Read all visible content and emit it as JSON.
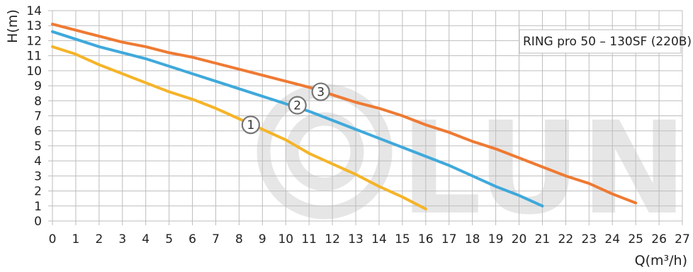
{
  "chart_data": {
    "type": "line",
    "title": "",
    "xlabel": "Q(m³/h)",
    "ylabel": "H(m)",
    "xlim": [
      0,
      27
    ],
    "ylim": [
      0,
      14
    ],
    "x_ticks": [
      0,
      1,
      2,
      3,
      4,
      5,
      6,
      7,
      8,
      9,
      10,
      11,
      12,
      13,
      14,
      15,
      16,
      17,
      18,
      19,
      20,
      21,
      22,
      23,
      24,
      25,
      26,
      27
    ],
    "y_ticks": [
      0,
      1,
      2,
      3,
      4,
      5,
      6,
      7,
      8,
      9,
      10,
      11,
      12,
      13,
      14
    ],
    "grid": true,
    "legend_box": "RING pro 50 – 130SF (220В)",
    "watermark": "LUNDA",
    "series": [
      {
        "name": "1",
        "color": "#F5B428",
        "points": [
          [
            0,
            11.6
          ],
          [
            1,
            11.1
          ],
          [
            2,
            10.4
          ],
          [
            3,
            9.8
          ],
          [
            4,
            9.2
          ],
          [
            5,
            8.6
          ],
          [
            6,
            8.1
          ],
          [
            7,
            7.5
          ],
          [
            8,
            6.8
          ],
          [
            9,
            6.1
          ],
          [
            10,
            5.4
          ],
          [
            11,
            4.5
          ],
          [
            12,
            3.8
          ],
          [
            13,
            3.1
          ],
          [
            14,
            2.3
          ],
          [
            15,
            1.6
          ],
          [
            16,
            0.8
          ]
        ],
        "marker": {
          "label": "1",
          "x": 8.5,
          "y": 6.4
        }
      },
      {
        "name": "2",
        "color": "#3FA9DB",
        "points": [
          [
            0,
            12.6
          ],
          [
            1,
            12.1
          ],
          [
            2,
            11.6
          ],
          [
            3,
            11.2
          ],
          [
            4,
            10.8
          ],
          [
            5,
            10.3
          ],
          [
            6,
            9.8
          ],
          [
            7,
            9.3
          ],
          [
            8,
            8.8
          ],
          [
            9,
            8.3
          ],
          [
            10,
            7.8
          ],
          [
            11,
            7.3
          ],
          [
            12,
            6.7
          ],
          [
            13,
            6.1
          ],
          [
            14,
            5.5
          ],
          [
            15,
            4.9
          ],
          [
            16,
            4.3
          ],
          [
            17,
            3.7
          ],
          [
            18,
            3.0
          ],
          [
            19,
            2.3
          ],
          [
            20,
            1.7
          ],
          [
            21,
            1.0
          ]
        ],
        "marker": {
          "label": "2",
          "x": 10.5,
          "y": 7.7
        }
      },
      {
        "name": "3",
        "color": "#EE7A33",
        "points": [
          [
            0,
            13.1
          ],
          [
            1,
            12.7
          ],
          [
            2,
            12.3
          ],
          [
            3,
            11.9
          ],
          [
            4,
            11.6
          ],
          [
            5,
            11.2
          ],
          [
            6,
            10.9
          ],
          [
            7,
            10.5
          ],
          [
            8,
            10.1
          ],
          [
            9,
            9.7
          ],
          [
            10,
            9.3
          ],
          [
            11,
            8.9
          ],
          [
            12,
            8.4
          ],
          [
            13,
            7.9
          ],
          [
            14,
            7.5
          ],
          [
            15,
            7.0
          ],
          [
            16,
            6.4
          ],
          [
            17,
            5.9
          ],
          [
            18,
            5.3
          ],
          [
            19,
            4.8
          ],
          [
            20,
            4.2
          ],
          [
            21,
            3.6
          ],
          [
            22,
            3.0
          ],
          [
            23,
            2.5
          ],
          [
            24,
            1.8
          ],
          [
            25,
            1.2
          ]
        ],
        "marker": {
          "label": "3",
          "x": 11.5,
          "y": 8.6
        }
      }
    ]
  }
}
